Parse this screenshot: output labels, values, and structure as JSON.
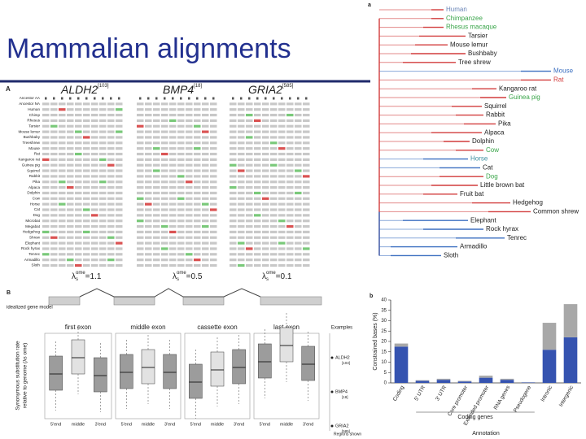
{
  "title": "Mammalian alignments",
  "panel_A": {
    "label": "A",
    "genes": [
      {
        "name": "ALDH2",
        "ref": "[103]"
      },
      {
        "name": "BMP4",
        "ref": "[18]"
      },
      {
        "name": "GRIA2",
        "ref": "[585]"
      }
    ],
    "species": [
      "Ancestor AA",
      "Ancestor NA",
      "Human",
      "Chimp",
      "Rhesus",
      "Tarsier",
      "Mouse lemur",
      "Bushbaby",
      "Treeshrew",
      "Mouse",
      "Rat",
      "Kangaroo rat",
      "Guinea pig",
      "Squirrel",
      "Rabbit",
      "Pika",
      "Alpaca",
      "Dolphin",
      "Cow",
      "Horse",
      "Cat",
      "Dog",
      "Microbat",
      "Megabat",
      "Hedgehog",
      "Shrew",
      "Elephant",
      "Rock hyrax",
      "Tenrec",
      "Armadillo",
      "Sloth"
    ],
    "rates": [
      {
        "symbol": "λ",
        "sub": "s",
        "sup": "ome",
        "rhs": "=1.1"
      },
      {
        "symbol": "λ",
        "sub": "s",
        "sup": "ome",
        "rhs": "=0.5"
      },
      {
        "symbol": "λ",
        "sub": "s",
        "sup": "ome",
        "rhs": "=0.1"
      }
    ]
  },
  "panel_a": {
    "label": "a",
    "taxa": [
      {
        "name": "Human",
        "color": "#6b86b8"
      },
      {
        "name": "Chimpanzee",
        "color": "#3aa54a"
      },
      {
        "name": "Rhesus macaque",
        "color": "#3aa54a"
      },
      {
        "name": "Tarsier",
        "color": "#222222"
      },
      {
        "name": "Mouse lemur",
        "color": "#222222"
      },
      {
        "name": "Bushbaby",
        "color": "#222222"
      },
      {
        "name": "Tree shrew",
        "color": "#222222"
      },
      {
        "name": "Mouse",
        "color": "#3b6fc0"
      },
      {
        "name": "Rat",
        "color": "#d23c3c"
      },
      {
        "name": "Kangaroo rat",
        "color": "#222222"
      },
      {
        "name": "Guinea pig",
        "color": "#3aa54a"
      },
      {
        "name": "Squirrel",
        "color": "#222222"
      },
      {
        "name": "Rabbit",
        "color": "#222222"
      },
      {
        "name": "Pika",
        "color": "#222222"
      },
      {
        "name": "Alpaca",
        "color": "#222222"
      },
      {
        "name": "Dolphin",
        "color": "#222222"
      },
      {
        "name": "Cow",
        "color": "#3aa54a"
      },
      {
        "name": "Horse",
        "color": "#3b8fa0"
      },
      {
        "name": "Cat",
        "color": "#222222"
      },
      {
        "name": "Dog",
        "color": "#3aa54a"
      },
      {
        "name": "Little brown bat",
        "color": "#222222"
      },
      {
        "name": "Fruit bat",
        "color": "#222222"
      },
      {
        "name": "Hedgehog",
        "color": "#222222"
      },
      {
        "name": "Common shrew",
        "color": "#222222"
      },
      {
        "name": "Elephant",
        "color": "#222222"
      },
      {
        "name": "Rock hyrax",
        "color": "#222222"
      },
      {
        "name": "Tenrec",
        "color": "#222222"
      },
      {
        "name": "Armadillo",
        "color": "#222222"
      },
      {
        "name": "Sloth",
        "color": "#222222"
      }
    ]
  },
  "panel_B": {
    "label": "B",
    "model_label": "idealized gene model",
    "exons": [
      "first exon",
      "middle exon",
      "cassette exon",
      "last exon"
    ],
    "positions": [
      "5'end",
      "middle",
      "3'end"
    ],
    "ylabel": [
      "Synonymous substitution rate",
      "relative to genome (λs ome)"
    ],
    "examples_title": "Examples",
    "examples": [
      {
        "name": "ALDH2",
        "ref": "[103]"
      },
      {
        "name": "BMP4",
        "ref": "[18]"
      },
      {
        "name": "GRIA2",
        "ref": "[585]"
      }
    ],
    "regions_label": "Regions shown"
  },
  "chart_data": {
    "type": "bar",
    "stacked": true,
    "label": "b",
    "ylabel": "Constrained bases (%)",
    "xlabel": "Annotation",
    "group_label": "Coding genes",
    "categories": [
      "Coding",
      "5' UTR",
      "3' UTR",
      "Core promoter",
      "Extended promoter",
      "RNA genes",
      "Pseudogene",
      "Intronic",
      "Intergenic"
    ],
    "series": [
      {
        "color": "#3553b0",
        "values": [
          17.5,
          1,
          1.5,
          0.7,
          2.5,
          1.5,
          0.2,
          16,
          22
        ]
      },
      {
        "color": "#a8a8a8",
        "values": [
          1.5,
          0.3,
          0.5,
          0.3,
          1,
          0.5,
          0.1,
          13,
          16
        ]
      }
    ],
    "ylim": [
      0,
      40
    ],
    "yticks": [
      0,
      5,
      10,
      15,
      20,
      25,
      30,
      35,
      40
    ]
  }
}
